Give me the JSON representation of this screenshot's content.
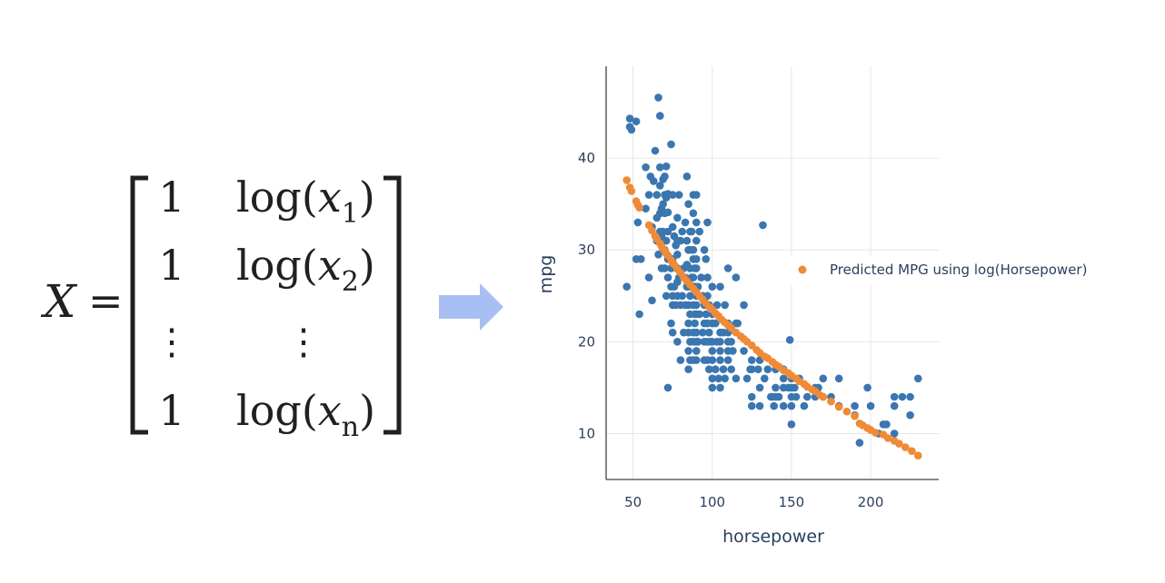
{
  "matrix": {
    "lhs": "X",
    "equals": "=",
    "rows": [
      {
        "one": "1",
        "fn": "log(",
        "var": "x",
        "sub": "1",
        "close": ")"
      },
      {
        "one": "1",
        "fn": "log(",
        "var": "x",
        "sub": "2",
        "close": ")"
      },
      {
        "one": "⋮",
        "fn": "",
        "var": "⋮",
        "sub": "",
        "close": ""
      },
      {
        "one": "1",
        "fn": "log(",
        "var": "x",
        "sub": "n",
        "close": ")"
      }
    ]
  },
  "arrow": {
    "color": "#a7bff2"
  },
  "chart_data": {
    "type": "scatter",
    "xlabel": "horsepower",
    "ylabel": "mpg",
    "xlim": [
      33,
      243
    ],
    "ylim": [
      5,
      50
    ],
    "xticks": [
      50,
      100,
      150,
      200
    ],
    "yticks": [
      10,
      20,
      30,
      40
    ],
    "grid": true,
    "legend_position": "right",
    "series": [
      {
        "name": "",
        "color": "#3a76af",
        "points": [
          [
            46,
            26
          ],
          [
            48,
            44.3
          ],
          [
            48,
            43.4
          ],
          [
            49,
            43.1
          ],
          [
            52,
            44
          ],
          [
            52,
            29
          ],
          [
            53,
            33
          ],
          [
            54,
            23
          ],
          [
            55,
            29
          ],
          [
            58,
            39
          ],
          [
            58,
            34.5
          ],
          [
            60,
            36
          ],
          [
            60,
            27
          ],
          [
            61,
            38
          ],
          [
            62,
            32.5
          ],
          [
            62,
            24.5
          ],
          [
            63,
            37.5
          ],
          [
            64,
            40.8
          ],
          [
            65,
            31
          ],
          [
            65,
            33.5
          ],
          [
            65,
            36
          ],
          [
            66,
            46.6
          ],
          [
            66,
            29.5
          ],
          [
            67,
            44.6
          ],
          [
            67,
            32
          ],
          [
            67,
            34
          ],
          [
            67,
            37
          ],
          [
            67,
            39
          ],
          [
            68,
            28
          ],
          [
            68,
            31
          ],
          [
            68,
            34.5
          ],
          [
            68,
            31.5
          ],
          [
            69,
            35
          ],
          [
            69,
            32
          ],
          [
            69,
            30
          ],
          [
            69,
            37.7
          ],
          [
            70,
            38
          ],
          [
            70,
            34
          ],
          [
            70,
            30
          ],
          [
            70,
            28
          ],
          [
            70,
            36
          ],
          [
            71,
            35.7
          ],
          [
            71,
            39.1
          ],
          [
            71,
            31
          ],
          [
            71,
            25
          ],
          [
            72,
            15
          ],
          [
            72,
            34.1
          ],
          [
            72,
            32
          ],
          [
            72,
            29
          ],
          [
            72,
            27
          ],
          [
            72,
            36.1
          ],
          [
            74,
            41.5
          ],
          [
            74,
            26
          ],
          [
            74,
            28
          ],
          [
            74,
            22
          ],
          [
            75,
            32.5
          ],
          [
            75,
            24
          ],
          [
            75,
            25
          ],
          [
            75,
            36
          ],
          [
            75,
            29
          ],
          [
            75,
            21
          ],
          [
            76,
            31.5
          ],
          [
            76,
            26
          ],
          [
            77,
            30.5
          ],
          [
            77,
            24
          ],
          [
            78,
            33.5
          ],
          [
            78,
            31
          ],
          [
            78,
            26.5
          ],
          [
            78,
            28
          ],
          [
            78,
            29.5
          ],
          [
            78,
            20
          ],
          [
            78,
            25
          ],
          [
            79,
            27
          ],
          [
            79,
            36
          ],
          [
            80,
            18
          ],
          [
            80,
            24
          ],
          [
            80,
            31
          ],
          [
            81,
            32
          ],
          [
            81,
            25
          ],
          [
            82,
            28
          ],
          [
            82,
            21
          ],
          [
            83,
            24
          ],
          [
            83,
            27
          ],
          [
            83,
            33
          ],
          [
            84,
            31
          ],
          [
            84,
            28.4
          ],
          [
            84,
            26
          ],
          [
            84,
            38
          ],
          [
            85,
            30
          ],
          [
            85,
            19
          ],
          [
            85,
            21
          ],
          [
            85,
            22
          ],
          [
            85,
            24
          ],
          [
            85,
            26
          ],
          [
            85,
            17
          ],
          [
            85,
            35
          ],
          [
            86,
            18
          ],
          [
            86,
            28
          ],
          [
            86,
            20
          ],
          [
            86,
            25
          ],
          [
            86,
            23
          ],
          [
            86,
            30
          ],
          [
            86,
            32
          ],
          [
            87,
            27
          ],
          [
            87,
            32
          ],
          [
            88,
            29
          ],
          [
            88,
            24
          ],
          [
            88,
            26
          ],
          [
            88,
            20
          ],
          [
            88,
            18
          ],
          [
            88,
            30
          ],
          [
            88,
            21
          ],
          [
            88,
            34
          ],
          [
            88,
            27
          ],
          [
            88,
            36
          ],
          [
            89,
            23
          ],
          [
            89,
            26
          ],
          [
            89,
            28
          ],
          [
            89,
            22
          ],
          [
            90,
            23
          ],
          [
            90,
            29
          ],
          [
            90,
            20
          ],
          [
            90,
            25
          ],
          [
            90,
            19
          ],
          [
            90,
            24
          ],
          [
            90,
            31
          ],
          [
            90,
            36
          ],
          [
            90,
            28
          ],
          [
            90,
            18
          ],
          [
            90,
            21
          ],
          [
            90,
            33
          ],
          [
            91,
            26
          ],
          [
            91,
            20
          ],
          [
            92,
            23
          ],
          [
            92,
            25
          ],
          [
            92,
            32
          ],
          [
            93,
            27
          ],
          [
            94,
            21
          ],
          [
            94,
            25
          ],
          [
            95,
            18
          ],
          [
            95,
            22
          ],
          [
            95,
            24
          ],
          [
            95,
            30
          ],
          [
            95,
            20
          ],
          [
            96,
            29
          ],
          [
            96,
            23
          ],
          [
            97,
            22
          ],
          [
            97,
            25
          ],
          [
            97,
            27
          ],
          [
            97,
            18
          ],
          [
            97,
            20
          ],
          [
            97,
            33
          ],
          [
            98,
            24
          ],
          [
            98,
            17
          ],
          [
            98,
            21
          ],
          [
            99,
            20
          ],
          [
            100,
            23
          ],
          [
            100,
            19
          ],
          [
            100,
            16
          ],
          [
            100,
            18
          ],
          [
            100,
            26
          ],
          [
            100,
            22
          ],
          [
            100,
            20
          ],
          [
            100,
            15
          ],
          [
            102,
            22
          ],
          [
            102,
            17
          ],
          [
            103,
            20
          ],
          [
            103,
            24
          ],
          [
            104,
            16
          ],
          [
            105,
            19
          ],
          [
            105,
            21
          ],
          [
            105,
            18
          ],
          [
            105,
            26
          ],
          [
            105,
            20
          ],
          [
            105,
            15
          ],
          [
            107,
            17
          ],
          [
            107,
            21
          ],
          [
            108,
            24
          ],
          [
            108,
            16
          ],
          [
            110,
            18
          ],
          [
            110,
            21
          ],
          [
            110,
            22
          ],
          [
            110,
            20
          ],
          [
            110,
            19
          ],
          [
            110,
            28
          ],
          [
            112,
            17
          ],
          [
            112,
            20
          ],
          [
            113,
            19
          ],
          [
            115,
            16
          ],
          [
            115,
            22
          ],
          [
            115,
            27
          ],
          [
            116,
            22
          ],
          [
            120,
            19
          ],
          [
            120,
            24
          ],
          [
            122,
            16
          ],
          [
            124,
            17
          ],
          [
            125,
            13
          ],
          [
            125,
            14
          ],
          [
            125,
            18
          ],
          [
            125,
            17
          ],
          [
            129,
            17
          ],
          [
            130,
            13
          ],
          [
            130,
            18
          ],
          [
            130,
            15
          ],
          [
            132,
            32.7
          ],
          [
            133,
            16
          ],
          [
            135,
            17
          ],
          [
            137,
            14
          ],
          [
            138,
            14
          ],
          [
            139,
            13
          ],
          [
            140,
            17
          ],
          [
            140,
            14
          ],
          [
            140,
            15
          ],
          [
            142,
            14
          ],
          [
            145,
            13
          ],
          [
            145,
            16
          ],
          [
            145,
            15
          ],
          [
            145,
            17
          ],
          [
            148,
            15
          ],
          [
            149,
            20.2
          ],
          [
            150,
            11
          ],
          [
            150,
            13
          ],
          [
            150,
            14
          ],
          [
            150,
            15
          ],
          [
            150,
            16
          ],
          [
            152,
            15
          ],
          [
            153,
            14
          ],
          [
            155,
            16
          ],
          [
            158,
            13
          ],
          [
            160,
            14
          ],
          [
            165,
            15
          ],
          [
            165,
            14
          ],
          [
            167,
            15
          ],
          [
            170,
            16
          ],
          [
            170,
            14
          ],
          [
            175,
            14
          ],
          [
            180,
            13
          ],
          [
            180,
            16
          ],
          [
            190,
            12
          ],
          [
            190,
            13
          ],
          [
            193,
            9
          ],
          [
            198,
            15
          ],
          [
            200,
            13
          ],
          [
            205,
            10
          ],
          [
            208,
            11
          ],
          [
            210,
            11
          ],
          [
            215,
            14
          ],
          [
            215,
            13
          ],
          [
            215,
            10
          ],
          [
            220,
            14
          ],
          [
            225,
            14
          ],
          [
            225,
            12
          ],
          [
            230,
            16
          ]
        ]
      },
      {
        "name": "Predicted MPG using log(Horsepower)",
        "color": "#ef8a36",
        "points": [
          [
            46,
            37.6
          ],
          [
            48,
            36.8
          ],
          [
            49,
            36.4
          ],
          [
            52,
            35.3
          ],
          [
            53,
            34.9
          ],
          [
            54,
            34.6
          ],
          [
            60,
            32.7
          ],
          [
            62,
            32.1
          ],
          [
            64,
            31.5
          ],
          [
            65,
            31.2
          ],
          [
            67,
            30.7
          ],
          [
            68,
            30.4
          ],
          [
            69,
            30.1
          ],
          [
            70,
            29.9
          ],
          [
            71,
            29.6
          ],
          [
            72,
            29.4
          ],
          [
            74,
            28.9
          ],
          [
            75,
            28.6
          ],
          [
            76,
            28.4
          ],
          [
            78,
            27.9
          ],
          [
            80,
            27.5
          ],
          [
            82,
            27.0
          ],
          [
            84,
            26.6
          ],
          [
            86,
            26.2
          ],
          [
            88,
            25.8
          ],
          [
            90,
            25.4
          ],
          [
            92,
            25.0
          ],
          [
            94,
            24.6
          ],
          [
            96,
            24.2
          ],
          [
            98,
            23.8
          ],
          [
            100,
            23.5
          ],
          [
            102,
            23.1
          ],
          [
            104,
            22.8
          ],
          [
            106,
            22.4
          ],
          [
            108,
            22.1
          ],
          [
            110,
            21.8
          ],
          [
            112,
            21.5
          ],
          [
            115,
            21.0
          ],
          [
            118,
            20.6
          ],
          [
            120,
            20.3
          ],
          [
            122,
            20.0
          ],
          [
            125,
            19.6
          ],
          [
            128,
            19.1
          ],
          [
            130,
            18.8
          ],
          [
            133,
            18.4
          ],
          [
            135,
            18.2
          ],
          [
            138,
            17.8
          ],
          [
            140,
            17.5
          ],
          [
            142,
            17.3
          ],
          [
            145,
            16.9
          ],
          [
            148,
            16.6
          ],
          [
            150,
            16.3
          ],
          [
            153,
            16.0
          ],
          [
            155,
            15.7
          ],
          [
            158,
            15.4
          ],
          [
            160,
            15.1
          ],
          [
            163,
            14.8
          ],
          [
            165,
            14.6
          ],
          [
            168,
            14.2
          ],
          [
            170,
            14.0
          ],
          [
            175,
            13.5
          ],
          [
            180,
            12.9
          ],
          [
            185,
            12.4
          ],
          [
            190,
            11.9
          ],
          [
            193,
            11.1
          ],
          [
            195,
            10.9
          ],
          [
            198,
            10.6
          ],
          [
            200,
            10.4
          ],
          [
            203,
            10.1
          ],
          [
            208,
            9.9
          ],
          [
            211,
            9.5
          ],
          [
            215,
            9.2
          ],
          [
            218,
            8.9
          ],
          [
            222,
            8.5
          ],
          [
            226,
            8.1
          ],
          [
            230,
            7.6
          ]
        ]
      }
    ]
  }
}
